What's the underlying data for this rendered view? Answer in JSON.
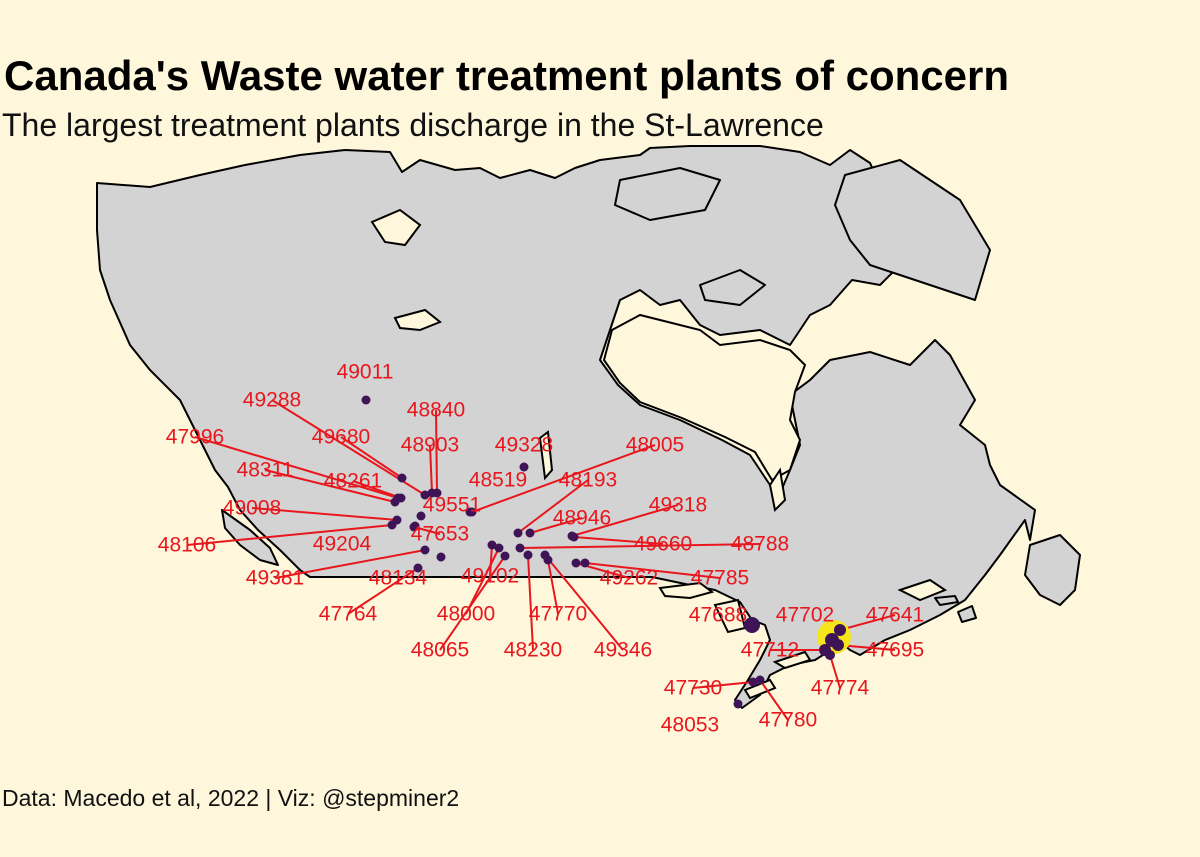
{
  "title": "Canada's Waste water treatment plants of concern",
  "subtitle": "The largest treatment plants discharge in the St-Lawrence",
  "caption": "Data: Macedo et al, 2022 | Viz: @stepminer2",
  "colors": {
    "background": "#fef7dc",
    "land": "#d3d3d3",
    "border": "#000000",
    "point": "#3f1457",
    "label": "#e8171d",
    "highlight": "#f7e51b"
  },
  "plants": [
    {
      "id": "49011"
    },
    {
      "id": "49288"
    },
    {
      "id": "48840"
    },
    {
      "id": "47996"
    },
    {
      "id": "49680"
    },
    {
      "id": "48903"
    },
    {
      "id": "49328"
    },
    {
      "id": "48005"
    },
    {
      "id": "48311"
    },
    {
      "id": "48261"
    },
    {
      "id": "48519"
    },
    {
      "id": "48193"
    },
    {
      "id": "49551"
    },
    {
      "id": "49008"
    },
    {
      "id": "49318"
    },
    {
      "id": "48946"
    },
    {
      "id": "47653"
    },
    {
      "id": "48106"
    },
    {
      "id": "49204"
    },
    {
      "id": "49660"
    },
    {
      "id": "48788"
    },
    {
      "id": "49381"
    },
    {
      "id": "48134"
    },
    {
      "id": "49102"
    },
    {
      "id": "49262"
    },
    {
      "id": "47785"
    },
    {
      "id": "47764"
    },
    {
      "id": "48000"
    },
    {
      "id": "47770"
    },
    {
      "id": "47688"
    },
    {
      "id": "47702"
    },
    {
      "id": "47641"
    },
    {
      "id": "48065"
    },
    {
      "id": "48230"
    },
    {
      "id": "49346"
    },
    {
      "id": "47712"
    },
    {
      "id": "47695"
    },
    {
      "id": "47774"
    },
    {
      "id": "47730"
    },
    {
      "id": "47780"
    },
    {
      "id": "48053"
    }
  ]
}
